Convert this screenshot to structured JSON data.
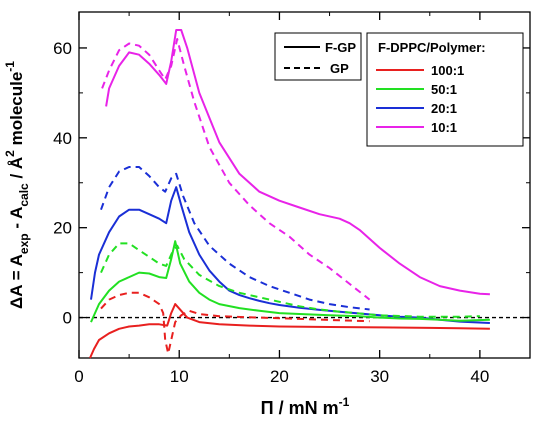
{
  "chart_data": {
    "type": "line",
    "xlabel": "Π / mN m",
    "xlabel_sup": "-1",
    "ylabel": {
      "prefix": "ΔA =  A",
      "sub1": "exp",
      "mid": " - A",
      "sub2": "calc",
      "after": " / Å",
      "sup2": "2",
      "unit": " molecule",
      "sup3": "-1"
    },
    "xlim": [
      0,
      45
    ],
    "ylim": [
      -9,
      68
    ],
    "x_ticks": [
      0,
      10,
      20,
      30,
      40
    ],
    "y_ticks": [
      0,
      20,
      40,
      60
    ],
    "grid": false,
    "zero_line": true,
    "style_legend": {
      "placement": "top-right",
      "entries": [
        {
          "label": "F-GP",
          "dash": "solid"
        },
        {
          "label": "GP",
          "dash": "dashed"
        }
      ]
    },
    "ratio_legend": {
      "title": "F-DPPC/Polymer:",
      "placement": "top-right",
      "entries": [
        {
          "label": "100:1",
          "color": "#e8201f"
        },
        {
          "label": "50:1",
          "color": "#22e022"
        },
        {
          "label": "20:1",
          "color": "#1a2fd6"
        },
        {
          "label": "10:1",
          "color": "#e823e8"
        }
      ]
    },
    "series": [
      {
        "ratio": "10:1",
        "style": "F-GP",
        "color": "#e823e8",
        "dash": "solid",
        "points": [
          [
            2.7,
            47
          ],
          [
            3,
            51
          ],
          [
            4,
            56
          ],
          [
            5,
            59
          ],
          [
            6,
            58.5
          ],
          [
            7,
            56.5
          ],
          [
            8,
            54
          ],
          [
            8.7,
            52
          ],
          [
            9.2,
            57
          ],
          [
            9.7,
            64
          ],
          [
            10.2,
            64
          ],
          [
            10.8,
            60
          ],
          [
            12,
            50
          ],
          [
            14,
            39
          ],
          [
            16,
            32
          ],
          [
            18,
            28
          ],
          [
            20,
            26
          ],
          [
            22,
            24.5
          ],
          [
            24,
            23
          ],
          [
            26,
            22
          ],
          [
            27,
            21
          ],
          [
            28,
            19.5
          ],
          [
            30,
            15.5
          ],
          [
            32,
            12
          ],
          [
            34,
            9
          ],
          [
            36,
            7
          ],
          [
            38,
            6
          ],
          [
            40,
            5.3
          ],
          [
            41,
            5.2
          ]
        ]
      },
      {
        "ratio": "10:1",
        "style": "GP",
        "color": "#e823e8",
        "dash": "dashed",
        "points": [
          [
            2.3,
            51
          ],
          [
            3,
            55
          ],
          [
            4,
            59.5
          ],
          [
            5,
            61
          ],
          [
            6,
            60.5
          ],
          [
            7,
            58.5
          ],
          [
            8,
            55
          ],
          [
            8.6,
            53
          ],
          [
            9.2,
            56
          ],
          [
            9.8,
            62
          ],
          [
            10.5,
            56
          ],
          [
            11.5,
            48
          ],
          [
            13,
            38
          ],
          [
            15,
            30
          ],
          [
            17,
            25
          ],
          [
            19,
            21
          ],
          [
            21,
            18
          ],
          [
            23,
            14
          ],
          [
            25,
            11
          ],
          [
            27,
            7.5
          ],
          [
            29,
            4
          ]
        ]
      },
      {
        "ratio": "20:1",
        "style": "F-GP",
        "color": "#1a2fd6",
        "dash": "solid",
        "points": [
          [
            1.2,
            4
          ],
          [
            1.6,
            10
          ],
          [
            2,
            14
          ],
          [
            3,
            19
          ],
          [
            4,
            22.5
          ],
          [
            5,
            24
          ],
          [
            6,
            24
          ],
          [
            7,
            23
          ],
          [
            8,
            22
          ],
          [
            8.7,
            21
          ],
          [
            9.2,
            26
          ],
          [
            9.7,
            29
          ],
          [
            10.2,
            25
          ],
          [
            11,
            19
          ],
          [
            12,
            14
          ],
          [
            13,
            10.5
          ],
          [
            14,
            8
          ],
          [
            15,
            6
          ],
          [
            16,
            5
          ],
          [
            17,
            4.3
          ],
          [
            18,
            3.7
          ],
          [
            19,
            3.2
          ],
          [
            20,
            2.8
          ],
          [
            22,
            2.2
          ],
          [
            24,
            1.7
          ],
          [
            26,
            1.3
          ],
          [
            28,
            0.9
          ],
          [
            30,
            0.5
          ],
          [
            32,
            0.2
          ],
          [
            34,
            0
          ],
          [
            36,
            -0.5
          ],
          [
            38,
            -0.9
          ],
          [
            41,
            -1.2
          ]
        ]
      },
      {
        "ratio": "20:1",
        "style": "GP",
        "color": "#1a2fd6",
        "dash": "dashed",
        "points": [
          [
            2.2,
            24
          ],
          [
            3,
            29
          ],
          [
            4,
            32.5
          ],
          [
            5,
            33.5
          ],
          [
            6,
            33.5
          ],
          [
            7,
            31.5
          ],
          [
            8,
            29
          ],
          [
            8.6,
            28
          ],
          [
            9.2,
            31
          ],
          [
            9.7,
            32
          ],
          [
            10.4,
            27
          ],
          [
            11.5,
            21
          ],
          [
            13,
            16
          ],
          [
            15,
            12
          ],
          [
            17,
            9
          ],
          [
            19,
            7
          ],
          [
            21,
            5.5
          ],
          [
            23,
            4
          ],
          [
            25,
            3
          ],
          [
            27,
            2.3
          ],
          [
            29,
            1.8
          ]
        ]
      },
      {
        "ratio": "50:1",
        "style": "F-GP",
        "color": "#22e022",
        "dash": "solid",
        "points": [
          [
            1.2,
            -1
          ],
          [
            1.6,
            1
          ],
          [
            2,
            3
          ],
          [
            3,
            6
          ],
          [
            4,
            8
          ],
          [
            5,
            9
          ],
          [
            6,
            10
          ],
          [
            7,
            9.8
          ],
          [
            8,
            9
          ],
          [
            8.7,
            8.8
          ],
          [
            9.2,
            13
          ],
          [
            9.6,
            17
          ],
          [
            10.1,
            12
          ],
          [
            11,
            8
          ],
          [
            12,
            5.5
          ],
          [
            13,
            4
          ],
          [
            14,
            3
          ],
          [
            16,
            2.1
          ],
          [
            18,
            1.5
          ],
          [
            20,
            1
          ],
          [
            22,
            0.8
          ],
          [
            25,
            0.5
          ],
          [
            28,
            0.3
          ],
          [
            30,
            0
          ],
          [
            32,
            -0.2
          ],
          [
            34,
            -0.3
          ],
          [
            36,
            -0.5
          ],
          [
            38,
            -0.7
          ],
          [
            41,
            -0.5
          ]
        ]
      },
      {
        "ratio": "50:1",
        "style": "GP",
        "color": "#22e022",
        "dash": "dashed",
        "points": [
          [
            2.2,
            10
          ],
          [
            3,
            14
          ],
          [
            4,
            16.5
          ],
          [
            5,
            16.5
          ],
          [
            6,
            15
          ],
          [
            7,
            13.5
          ],
          [
            8,
            12
          ],
          [
            8.7,
            11.5
          ],
          [
            9.3,
            14.5
          ],
          [
            9.8,
            16
          ],
          [
            10.5,
            13
          ],
          [
            12,
            9.5
          ],
          [
            14,
            7
          ],
          [
            16,
            5.5
          ],
          [
            18,
            4.5
          ],
          [
            20,
            3.5
          ],
          [
            22,
            2.5
          ],
          [
            24,
            1.8
          ],
          [
            26,
            1.3
          ],
          [
            28,
            0.9
          ],
          [
            30,
            0.5
          ],
          [
            34,
            0.2
          ],
          [
            38,
            0.2
          ],
          [
            40,
            0.3
          ]
        ]
      },
      {
        "ratio": "100:1",
        "style": "F-GP",
        "color": "#e8201f",
        "dash": "solid",
        "points": [
          [
            1.1,
            -9
          ],
          [
            1.5,
            -7
          ],
          [
            2,
            -5
          ],
          [
            3,
            -3.5
          ],
          [
            4,
            -2.5
          ],
          [
            5,
            -2
          ],
          [
            6,
            -1.8
          ],
          [
            7,
            -1.5
          ],
          [
            8,
            -1.5
          ],
          [
            8.8,
            -1.8
          ],
          [
            9.2,
            1
          ],
          [
            9.6,
            3
          ],
          [
            10,
            2
          ],
          [
            10.8,
            0
          ],
          [
            12,
            -1
          ],
          [
            14,
            -1.5
          ],
          [
            17,
            -1.8
          ],
          [
            20,
            -2
          ],
          [
            25,
            -2.1
          ],
          [
            30,
            -2.2
          ],
          [
            35,
            -2.3
          ],
          [
            38,
            -2.4
          ],
          [
            41,
            -2.5
          ]
        ]
      },
      {
        "ratio": "100:1",
        "style": "GP",
        "color": "#e8201f",
        "dash": "dashed",
        "points": [
          [
            2.2,
            2
          ],
          [
            3,
            4
          ],
          [
            4,
            5
          ],
          [
            5,
            5.5
          ],
          [
            6,
            5.5
          ],
          [
            7,
            4.5
          ],
          [
            8,
            3
          ],
          [
            8.4,
            1
          ],
          [
            8.6,
            -5
          ],
          [
            8.9,
            -8
          ],
          [
            9.2,
            -5
          ],
          [
            9.6,
            -1
          ],
          [
            10.2,
            0.5
          ],
          [
            11,
            1.5
          ],
          [
            12,
            0.8
          ],
          [
            14,
            0.3
          ],
          [
            18,
            0
          ],
          [
            22,
            -0.3
          ],
          [
            26,
            -0.6
          ],
          [
            29,
            -0.8
          ]
        ]
      }
    ]
  }
}
